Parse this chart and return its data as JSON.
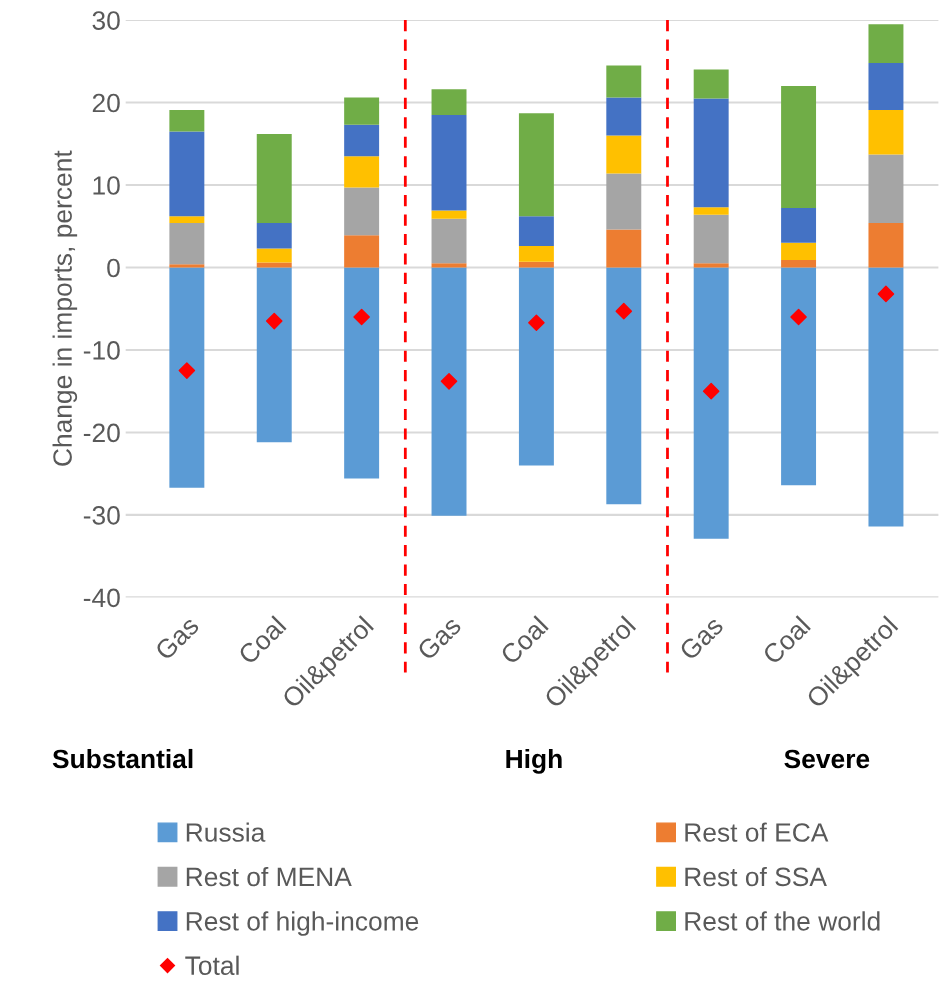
{
  "chart_data": {
    "type": "bar",
    "stacked": true,
    "ylabel": "Change in imports, percent",
    "categories": [
      "Gas",
      "Coal",
      "Oil&petrol",
      "Gas",
      "Coal",
      "Oil&petrol",
      "Gas",
      "Coal",
      "Oil&petrol"
    ],
    "series": [
      {
        "name": "Russia",
        "color": "#5b9bd5",
        "values": [
          -26.7,
          -21.2,
          -25.6,
          -30.1,
          -24.0,
          -28.7,
          -32.9,
          -26.4,
          -31.4
        ]
      },
      {
        "name": "Rest of ECA",
        "color": "#ed7d31",
        "values": [
          0.4,
          0.6,
          3.9,
          0.5,
          0.7,
          4.6,
          0.5,
          0.9,
          5.4
        ]
      },
      {
        "name": "Rest of MENA",
        "color": "#a5a5a5",
        "values": [
          5.0,
          0.0,
          5.8,
          5.4,
          0.0,
          6.8,
          5.9,
          0.0,
          8.3
        ]
      },
      {
        "name": "Rest of SSA",
        "color": "#ffc000",
        "values": [
          0.8,
          1.7,
          3.8,
          1.0,
          1.9,
          4.6,
          0.9,
          2.1,
          5.4
        ]
      },
      {
        "name": "Rest of high-income",
        "color": "#4472c4",
        "values": [
          10.3,
          3.1,
          3.8,
          11.6,
          3.6,
          4.6,
          13.2,
          4.2,
          5.7
        ]
      },
      {
        "name": "Rest of the world",
        "color": "#70ad47",
        "values": [
          2.6,
          10.8,
          3.3,
          3.1,
          12.5,
          3.9,
          3.5,
          14.8,
          4.7
        ]
      },
      {
        "name": "Total",
        "type": "scatter",
        "marker": "diamond",
        "color": "#ff0000",
        "values": [
          -12.5,
          -6.5,
          -6.0,
          -13.8,
          -6.7,
          -5.3,
          -15.0,
          -6.0,
          -3.2
        ]
      }
    ],
    "ylim": [
      -40,
      30
    ],
    "yticks": [
      -40,
      -30,
      -20,
      -10,
      0,
      10,
      20,
      30
    ],
    "grid": "y",
    "legend": "bottom",
    "annotations": [
      "Substantial",
      "High",
      "Severe"
    ]
  }
}
